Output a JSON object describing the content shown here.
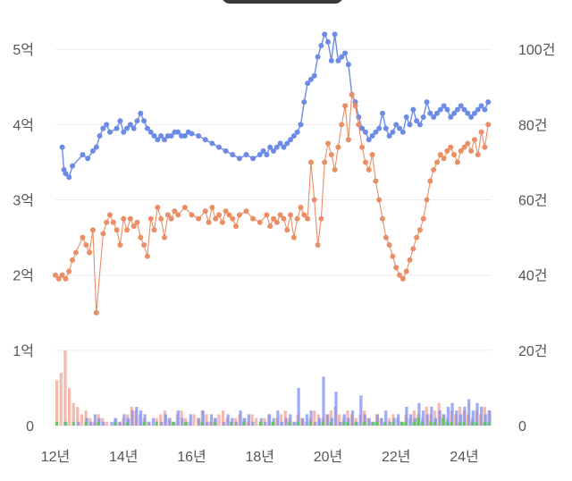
{
  "chart_data": {
    "type": "line",
    "y_left_ticks": [
      "0",
      "1억",
      "2억",
      "3억",
      "4억",
      "5억"
    ],
    "y_left_range": [
      0,
      5.3
    ],
    "y_right_ticks": [
      "0",
      "20건",
      "40건",
      "60건",
      "80건",
      "100건"
    ],
    "y_right_range": [
      0,
      106
    ],
    "x_ticks": [
      "12년",
      "14년",
      "16년",
      "18년",
      "20년",
      "22년",
      "24년"
    ],
    "x_range": [
      2012.0,
      2024.8
    ],
    "grid": "horizontal",
    "colors": {
      "series_blue": "#6b8be6",
      "series_orange": "#ea8e66",
      "bar_blue": "#7f8ff2",
      "bar_pink": "#f2a392",
      "bar_green": "#5cc85c"
    },
    "series": [
      {
        "axis": "left",
        "unit": "억",
        "x": [
          2012.2,
          2012.25,
          2012.3,
          2012.4,
          2012.5,
          2012.8,
          2012.95,
          2013.1,
          2013.2,
          2013.3,
          2013.4,
          2013.5,
          2013.6,
          2013.8,
          2013.9,
          2014.0,
          2014.1,
          2014.2,
          2014.3,
          2014.4,
          2014.5,
          2014.6,
          2014.7,
          2014.8,
          2014.9,
          2015.0,
          2015.1,
          2015.2,
          2015.3,
          2015.4,
          2015.5,
          2015.6,
          2015.7,
          2015.8,
          2015.9,
          2016.0,
          2016.2,
          2016.4,
          2016.6,
          2016.8,
          2017.0,
          2017.2,
          2017.4,
          2017.6,
          2017.8,
          2018.0,
          2018.1,
          2018.2,
          2018.3,
          2018.4,
          2018.5,
          2018.6,
          2018.7,
          2018.8,
          2018.9,
          2019.0,
          2019.1,
          2019.2,
          2019.3,
          2019.4,
          2019.5,
          2019.6,
          2019.7,
          2019.8,
          2019.9,
          2020.0,
          2020.1,
          2020.2,
          2020.3,
          2020.4,
          2020.5,
          2020.6,
          2020.7,
          2020.8,
          2020.9,
          2021.0,
          2021.1,
          2021.2,
          2021.3,
          2021.4,
          2021.5,
          2021.6,
          2021.7,
          2021.8,
          2021.9,
          2022.0,
          2022.1,
          2022.2,
          2022.3,
          2022.4,
          2022.5,
          2022.6,
          2022.7,
          2022.8,
          2022.9,
          2023.0,
          2023.1,
          2023.2,
          2023.3,
          2023.4,
          2023.5,
          2023.6,
          2023.7,
          2023.8,
          2023.9,
          2024.0,
          2024.1,
          2024.2,
          2024.3,
          2024.4,
          2024.5,
          2024.6,
          2024.7
        ],
        "values": [
          3.7,
          3.4,
          3.35,
          3.3,
          3.45,
          3.6,
          3.55,
          3.65,
          3.7,
          3.85,
          3.95,
          4.0,
          3.9,
          3.95,
          4.05,
          3.9,
          3.95,
          4.0,
          3.95,
          4.05,
          4.15,
          4.05,
          3.95,
          3.9,
          3.85,
          3.8,
          3.85,
          3.8,
          3.85,
          3.85,
          3.9,
          3.9,
          3.85,
          3.85,
          3.9,
          3.88,
          3.85,
          3.8,
          3.75,
          3.7,
          3.65,
          3.6,
          3.55,
          3.6,
          3.55,
          3.6,
          3.65,
          3.6,
          3.7,
          3.65,
          3.7,
          3.75,
          3.7,
          3.75,
          3.8,
          3.85,
          3.9,
          4.0,
          4.3,
          4.55,
          4.6,
          4.65,
          4.9,
          5.05,
          5.2,
          5.1,
          4.85,
          5.2,
          4.85,
          4.9,
          4.95,
          4.8,
          4.4,
          4.3,
          4.1,
          3.95,
          3.9,
          3.8,
          3.85,
          3.9,
          3.95,
          4.15,
          3.95,
          3.85,
          3.9,
          4.0,
          3.95,
          3.9,
          4.1,
          4.0,
          4.2,
          4.05,
          4.0,
          4.1,
          4.3,
          4.15,
          4.1,
          4.15,
          4.2,
          4.25,
          4.2,
          4.1,
          4.15,
          4.2,
          4.25,
          4.2,
          4.15,
          4.1,
          4.15,
          4.2,
          4.25,
          4.2,
          4.3
        ]
      },
      {
        "axis": "right",
        "unit": "건",
        "x": [
          2012.0,
          2012.1,
          2012.2,
          2012.3,
          2012.4,
          2012.5,
          2012.6,
          2012.8,
          2012.9,
          2013.0,
          2013.1,
          2013.2,
          2013.4,
          2013.5,
          2013.6,
          2013.7,
          2013.8,
          2013.9,
          2014.0,
          2014.1,
          2014.2,
          2014.3,
          2014.4,
          2014.5,
          2014.6,
          2014.7,
          2014.8,
          2014.9,
          2015.0,
          2015.1,
          2015.2,
          2015.3,
          2015.4,
          2015.5,
          2015.6,
          2015.8,
          2016.0,
          2016.2,
          2016.4,
          2016.5,
          2016.6,
          2016.7,
          2016.8,
          2016.9,
          2017.0,
          2017.1,
          2017.2,
          2017.3,
          2017.4,
          2017.6,
          2017.8,
          2018.0,
          2018.2,
          2018.3,
          2018.4,
          2018.5,
          2018.6,
          2018.7,
          2018.8,
          2018.9,
          2019.0,
          2019.1,
          2019.2,
          2019.3,
          2019.4,
          2019.5,
          2019.6,
          2019.7,
          2019.8,
          2019.9,
          2020.0,
          2020.1,
          2020.2,
          2020.3,
          2020.4,
          2020.5,
          2020.6,
          2020.7,
          2020.8,
          2020.9,
          2021.0,
          2021.1,
          2021.2,
          2021.3,
          2021.4,
          2021.5,
          2021.6,
          2021.7,
          2021.8,
          2021.9,
          2022.0,
          2022.1,
          2022.2,
          2022.3,
          2022.4,
          2022.5,
          2022.6,
          2022.7,
          2022.8,
          2022.9,
          2023.0,
          2023.1,
          2023.2,
          2023.3,
          2023.4,
          2023.5,
          2023.6,
          2023.7,
          2023.8,
          2023.9,
          2024.0,
          2024.1,
          2024.2,
          2024.3,
          2024.4,
          2024.5,
          2024.6,
          2024.7
        ],
        "values": [
          40,
          39,
          40,
          39,
          41,
          44,
          46,
          50,
          48,
          46,
          52,
          30,
          51,
          54,
          56,
          54,
          52,
          48,
          55,
          52,
          55,
          53,
          54,
          50,
          48,
          45,
          55,
          52,
          58,
          55,
          50,
          56,
          55,
          57,
          56,
          58,
          56,
          55,
          57,
          54,
          58,
          55,
          56,
          54,
          57,
          56,
          55,
          53,
          56,
          57,
          55,
          54,
          56,
          53,
          55,
          54,
          56,
          55,
          52,
          56,
          50,
          55,
          58,
          56,
          55,
          70,
          60,
          48,
          55,
          70,
          75,
          72,
          68,
          74,
          80,
          85,
          76,
          88,
          85,
          80,
          74,
          70,
          68,
          72,
          65,
          60,
          55,
          50,
          48,
          45,
          42,
          40,
          39,
          41,
          44,
          47,
          50,
          52,
          55,
          60,
          65,
          68,
          70,
          72,
          71,
          73,
          74,
          72,
          70,
          73,
          74,
          75,
          73,
          76,
          72,
          78,
          74,
          80
        ]
      }
    ],
    "bars_blue": [
      0,
      0,
      1,
      0,
      0,
      1,
      0,
      2,
      1,
      3,
      2,
      1,
      0,
      1,
      2,
      1,
      3,
      2,
      4,
      5,
      4,
      3,
      1,
      2,
      0,
      1,
      3,
      2,
      1,
      4,
      2,
      1,
      3,
      0,
      2,
      4,
      1,
      3,
      2,
      0,
      1,
      3,
      2,
      1,
      4,
      2,
      3,
      1,
      0,
      2,
      1,
      3,
      2,
      4,
      1,
      2,
      3,
      1,
      10,
      2,
      3,
      4,
      1,
      2,
      13,
      3,
      2,
      9,
      1,
      3,
      2,
      4,
      1,
      8,
      3,
      2,
      1,
      3,
      2,
      4,
      1,
      2,
      3,
      1,
      5,
      3,
      2,
      6,
      4,
      3,
      5,
      2,
      4,
      3,
      5,
      6,
      4,
      3,
      5,
      7,
      4,
      6,
      5,
      3,
      4
    ],
    "bars_pink": [
      12,
      14,
      20,
      10,
      6,
      5,
      3,
      4,
      2,
      1,
      3,
      2,
      1,
      0,
      2,
      1,
      2,
      3,
      5,
      4,
      3,
      2,
      1,
      0,
      2,
      3,
      4,
      2,
      1,
      3,
      4,
      2,
      1,
      3,
      2,
      4,
      3,
      1,
      2,
      3,
      4,
      2,
      1,
      2,
      3,
      2,
      1,
      3,
      2,
      1,
      2,
      3,
      1,
      2,
      3,
      4,
      2,
      1,
      3,
      2,
      1,
      2,
      4,
      3,
      2,
      3,
      4,
      5,
      3,
      2,
      4,
      3,
      2,
      3,
      4,
      2,
      1,
      3,
      2,
      1,
      2,
      3,
      2,
      1,
      3,
      2,
      4,
      3,
      2,
      5,
      3,
      4,
      6,
      3,
      2,
      4,
      3,
      5,
      4,
      3,
      2,
      4,
      3,
      5,
      4
    ],
    "bars_green": [
      1,
      0,
      1,
      0,
      1,
      0,
      0,
      1,
      0,
      0,
      1,
      0,
      0,
      0,
      1,
      0,
      0,
      1,
      0,
      0,
      0,
      1,
      0,
      0,
      1,
      0,
      0,
      0,
      1,
      0,
      0,
      1,
      0,
      0,
      0,
      1,
      0,
      0,
      1,
      0,
      0,
      0,
      1,
      0,
      0,
      1,
      0,
      0,
      0,
      1,
      0,
      0,
      1,
      0,
      0,
      0,
      1,
      0,
      1,
      0,
      0,
      1,
      0,
      0,
      1,
      0,
      1,
      0,
      0,
      1,
      1,
      0,
      1,
      0,
      1,
      0,
      1,
      1,
      0,
      1,
      0,
      1,
      0,
      1,
      1,
      0,
      1,
      2,
      1,
      0,
      1,
      1,
      0,
      2,
      1,
      1,
      0,
      1,
      1,
      0,
      1,
      1,
      0,
      1,
      1
    ]
  }
}
